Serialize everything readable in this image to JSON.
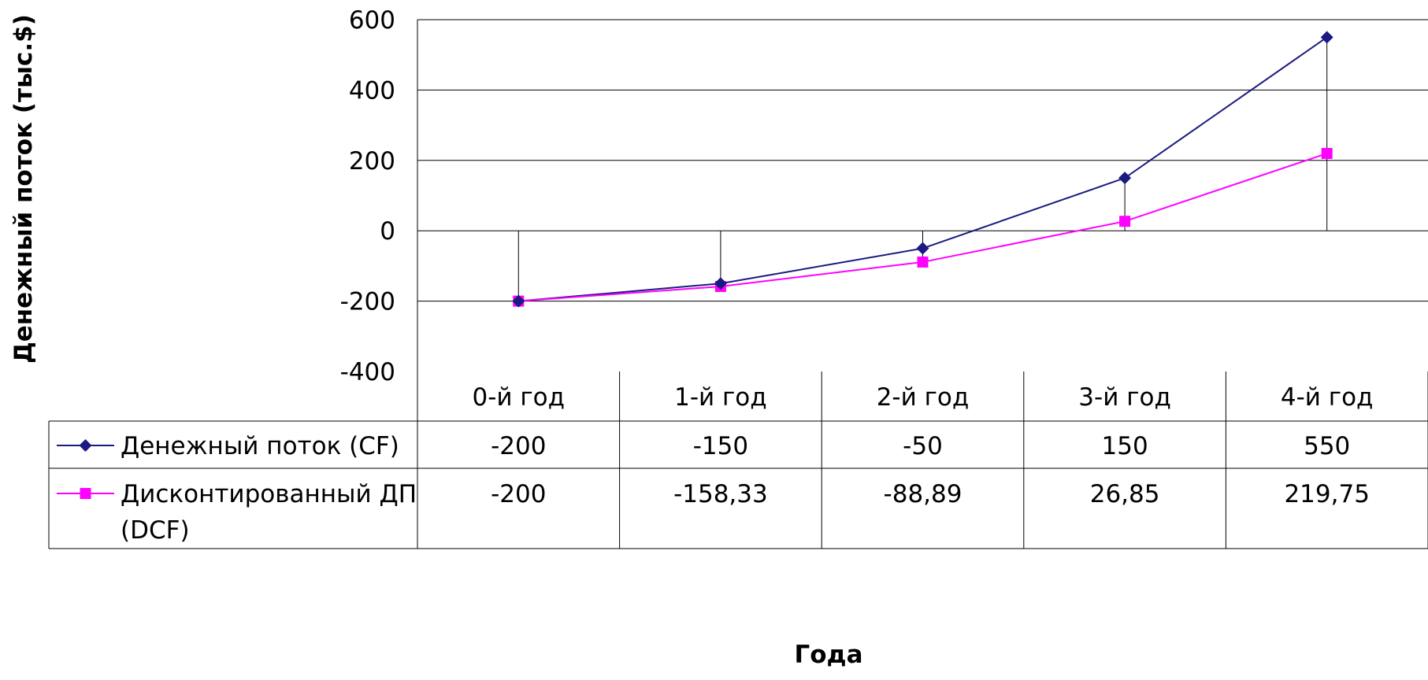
{
  "chart_data": {
    "type": "line",
    "categories": [
      "0-й год",
      "1-й год",
      "2-й год",
      "3-й год",
      "4-й год"
    ],
    "series": [
      {
        "name": "Денежный поток (CF)",
        "values": [
          -200,
          -150,
          -50,
          150,
          550
        ],
        "labels": [
          "-200",
          "-150",
          "-50",
          "150",
          "550"
        ],
        "color": "#1a1a80",
        "marker": "diamond"
      },
      {
        "name": "Дисконтированный ДП (DCF)",
        "name_lines": [
          "Дисконтированный ДП",
          "(DCF)"
        ],
        "values": [
          -200,
          -158.33,
          -88.89,
          26.85,
          219.75
        ],
        "labels": [
          "-200",
          "-158,33",
          "-88,89",
          "26,85",
          "219,75"
        ],
        "color": "#ff00ff",
        "marker": "square"
      }
    ],
    "ylabel": "Денежный поток (тыс.$)",
    "xlabel": "Года",
    "ylim": [
      -400,
      600
    ],
    "yticks": [
      600,
      400,
      200,
      0,
      -200,
      -400
    ],
    "grid": true,
    "drop_lines": true,
    "legend": "data-table"
  }
}
